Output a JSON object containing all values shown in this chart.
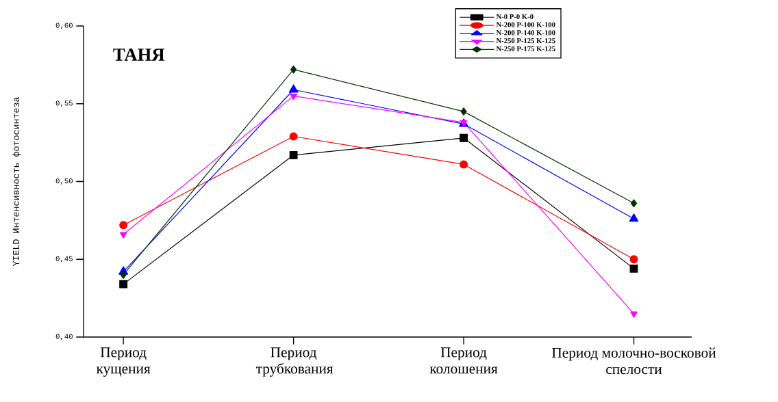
{
  "chart_data": {
    "type": "line",
    "title": "ТАНЯ",
    "ylabel": "YIELD Интенсивность фотосинтеза",
    "categories": [
      "Период кущения",
      "Период трубкования",
      "Период колошения",
      "Период молочно-восковой спелости"
    ],
    "ylim": [
      0.4,
      0.6
    ],
    "yticks": [
      {
        "value": 0.4,
        "label": "0,40"
      },
      {
        "value": 0.45,
        "label": "0,45"
      },
      {
        "value": 0.5,
        "label": "0,50"
      },
      {
        "value": 0.55,
        "label": "0,55"
      },
      {
        "value": 0.6,
        "label": "0,60"
      }
    ],
    "grid": false,
    "legend": "top right",
    "line_style": "solid",
    "series": [
      {
        "name": "N-0   P-0   K-0",
        "color": "#000000",
        "marker": "square",
        "values": [
          0.434,
          0.517,
          0.528,
          0.444
        ]
      },
      {
        "name": "N-200   P-100   K-100",
        "color": "#ff0000",
        "marker": "circle",
        "values": [
          0.472,
          0.529,
          0.511,
          0.45
        ]
      },
      {
        "name": "N-200   P-140   K-100",
        "color": "#0000ff",
        "marker": "triangle",
        "values": [
          0.442,
          0.559,
          0.537,
          0.476
        ]
      },
      {
        "name": "N-250   P-125   K-125",
        "color": "#ff00ff",
        "marker": "triangle down",
        "values": [
          0.466,
          0.555,
          0.538,
          0.415
        ]
      },
      {
        "name": "N-250   P-175   K-125",
        "color": "#003300",
        "marker": "diamond",
        "values": [
          0.44,
          0.572,
          0.545,
          0.486
        ]
      }
    ]
  }
}
